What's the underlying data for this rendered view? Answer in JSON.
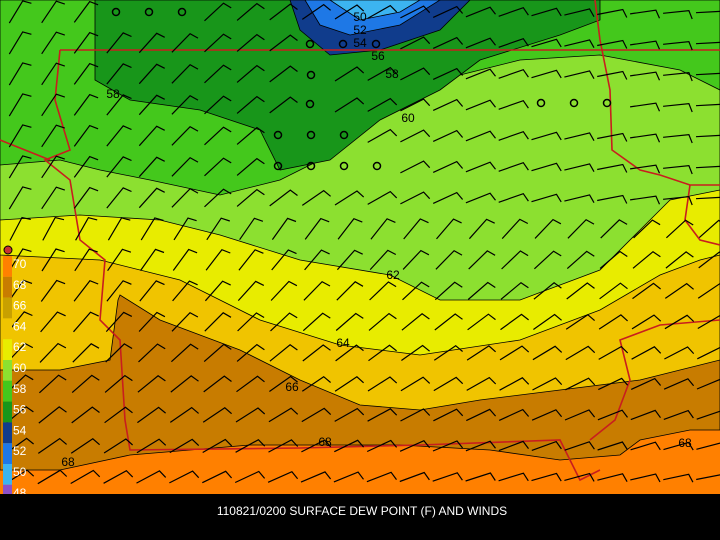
{
  "caption": "110821/0200 SURFACE DEW POINT (F) AND WINDS",
  "legend": {
    "labels": [
      "70",
      "68",
      "66",
      "64",
      "62",
      "60",
      "58",
      "56",
      "54",
      "52",
      "50",
      "48"
    ]
  },
  "contour_labels": [
    "50",
    "52",
    "54",
    "56",
    "58",
    "60",
    "58",
    "62",
    "64",
    "66",
    "68",
    "68",
    "68"
  ]
}
